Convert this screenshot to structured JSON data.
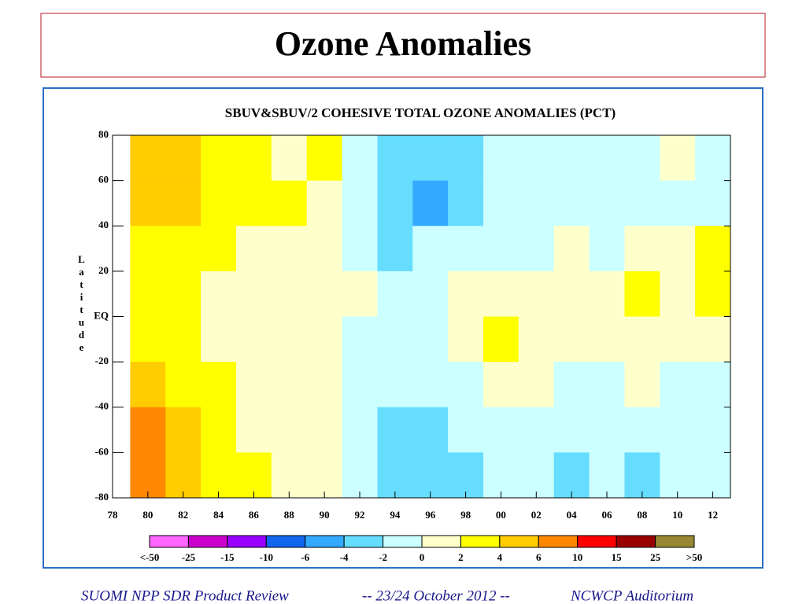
{
  "slide_title": "Ozone Anomalies",
  "footer": [
    "SUOMI NPP SDR Product Review",
    "-- 23/24 October 2012 --",
    "NCWCP Auditorium"
  ],
  "chart_data": {
    "type": "heatmap",
    "title": "SBUV&SBUV/2 COHESIVE TOTAL OZONE ANOMALIES (PCT)",
    "y_label": "Latitude",
    "x": [
      1980,
      1982,
      1984,
      1986,
      1988,
      1990,
      1992,
      1994,
      1996,
      1998,
      2000,
      2002,
      2004,
      2006,
      2008,
      2010,
      2012
    ],
    "y": [
      70,
      50,
      30,
      10,
      -10,
      -30,
      -50,
      -70
    ],
    "cell_width": 2,
    "cell_height": 20,
    "values": [
      [
        4,
        4,
        3,
        2,
        1,
        2,
        -2,
        -4,
        -4,
        -3,
        -2,
        -2,
        -1,
        -2,
        -1,
        0,
        -1
      ],
      [
        4,
        5,
        3,
        2,
        2,
        1,
        -2,
        -4,
        -5,
        -3,
        -2,
        -2,
        -1,
        -1,
        -2,
        -1,
        -1
      ],
      [
        3,
        3,
        2,
        1,
        1,
        1,
        -1,
        -3,
        -2,
        -2,
        -1,
        -1,
        0,
        -1,
        1,
        1,
        2
      ],
      [
        2,
        2,
        1,
        0,
        1,
        0,
        0,
        -2,
        -1,
        0,
        1,
        1,
        0,
        1,
        2,
        1,
        2
      ],
      [
        2,
        2,
        1,
        1,
        0,
        0,
        -1,
        -2,
        -1,
        0,
        2,
        1,
        0,
        1,
        1,
        0,
        1
      ],
      [
        4,
        3,
        2,
        1,
        1,
        0,
        -1,
        -2,
        -2,
        -1,
        0,
        0,
        -1,
        -1,
        0,
        -1,
        -1
      ],
      [
        6,
        4,
        2,
        1,
        1,
        0,
        -1,
        -3,
        -3,
        -2,
        -2,
        -1,
        -2,
        -2,
        -1,
        -2,
        -2
      ],
      [
        8,
        5,
        3,
        2,
        1,
        0,
        -2,
        -4,
        -4,
        -3,
        -2,
        -2,
        -3,
        -2,
        -3,
        -2,
        -2
      ]
    ],
    "xlim": [
      1978,
      2013
    ],
    "ylim": [
      -80,
      80
    ],
    "xticks": [
      {
        "value": 1978,
        "label": "78"
      },
      {
        "value": 1980,
        "label": "80"
      },
      {
        "value": 1982,
        "label": "82"
      },
      {
        "value": 1984,
        "label": "84"
      },
      {
        "value": 1986,
        "label": "86"
      },
      {
        "value": 1988,
        "label": "88"
      },
      {
        "value": 1990,
        "label": "90"
      },
      {
        "value": 1992,
        "label": "92"
      },
      {
        "value": 1994,
        "label": "94"
      },
      {
        "value": 1996,
        "label": "96"
      },
      {
        "value": 1998,
        "label": "98"
      },
      {
        "value": 2000,
        "label": "00"
      },
      {
        "value": 2002,
        "label": "02"
      },
      {
        "value": 2004,
        "label": "04"
      },
      {
        "value": 2006,
        "label": "06"
      },
      {
        "value": 2008,
        "label": "08"
      },
      {
        "value": 2010,
        "label": "10"
      },
      {
        "value": 2012,
        "label": "12"
      }
    ],
    "yticks": [
      80,
      60,
      40,
      20,
      {
        "value": 0,
        "label": "EQ"
      },
      -20,
      -40,
      -60,
      -80
    ],
    "color_levels": [
      {
        "value": -50,
        "label": "<-50"
      },
      -25,
      -15,
      -10,
      -6,
      -4,
      -2,
      0,
      2,
      4,
      6,
      10,
      15,
      25,
      {
        "value": 50,
        "label": ">50"
      }
    ],
    "colors": [
      "#ff66ff",
      "#cc00cc",
      "#9900ff",
      "#1166ee",
      "#33aaff",
      "#66ddff",
      "#ccffff",
      "#ffffcc",
      "#ffff00",
      "#ffcc00",
      "#ff8800",
      "#ff0000",
      "#990000",
      "#998833"
    ]
  }
}
